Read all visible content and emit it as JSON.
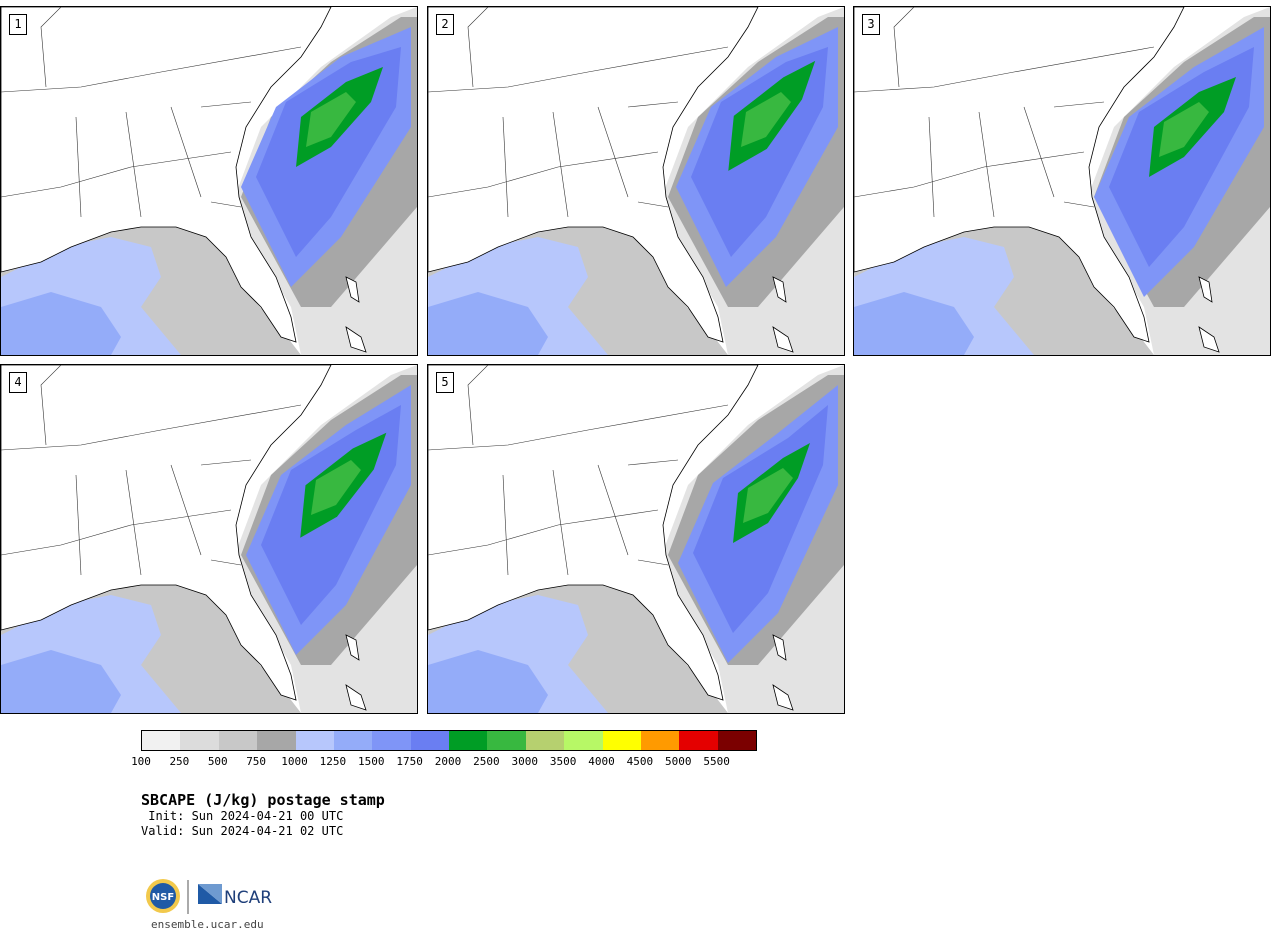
{
  "panels": [
    {
      "label": "1"
    },
    {
      "label": "2"
    },
    {
      "label": "3"
    },
    {
      "label": "4"
    },
    {
      "label": "5"
    }
  ],
  "legend": {
    "colors": [
      "#f1f1f1",
      "#dcdcdc",
      "#c8c8c8",
      "#a7a7a7",
      "#b7c7fc",
      "#94acf9",
      "#7f95f7",
      "#6a7ef2",
      "#009d25",
      "#38b840",
      "#b6d06f",
      "#b7f866",
      "#ffff00",
      "#ff9a00",
      "#e40000",
      "#7b0000"
    ],
    "labels": [
      "100",
      "250",
      "500",
      "750",
      "1000",
      "1250",
      "1500",
      "1750",
      "2000",
      "2500",
      "3000",
      "3500",
      "4000",
      "4500",
      "5000",
      "5500"
    ]
  },
  "title": "SBCAPE (J/kg) postage stamp",
  "init": " Init: Sun 2024-04-21 00 UTC",
  "valid": "Valid: Sun 2024-04-21 02 UTC",
  "logos": {
    "nsf": "NSF",
    "ncar": "NCAR"
  },
  "site": "ensemble.ucar.edu"
}
